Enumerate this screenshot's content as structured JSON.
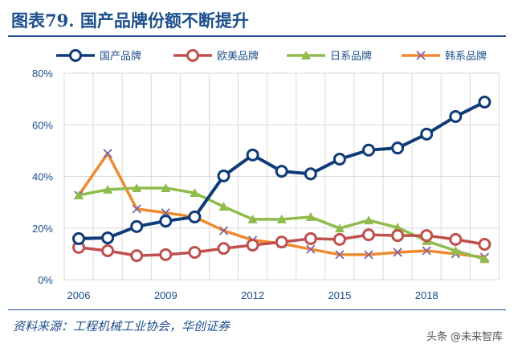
{
  "title": "图表79.  国产品牌份额不断提升",
  "source": "资料来源：工程机械工业协会，华创证券",
  "watermark": "头条 @未来智库",
  "chart_data": {
    "type": "line",
    "x": [
      2006,
      2007,
      2008,
      2009,
      2010,
      2011,
      2012,
      2013,
      2014,
      2015,
      2016,
      2017,
      2018,
      2019,
      2020
    ],
    "x_tick_labels": [
      "2006",
      "2009",
      "2012",
      "2015",
      "2018"
    ],
    "x_ticks": [
      2006,
      2009,
      2012,
      2015,
      2018
    ],
    "y_tick_labels": [
      "0%",
      "20%",
      "40%",
      "60%",
      "80%"
    ],
    "ylim": [
      0,
      80
    ],
    "grid": true,
    "legend": "top",
    "series": [
      {
        "name": "国产品牌",
        "color": "#0f3b78",
        "marker": "circle",
        "values": [
          15.9,
          16.2,
          20.6,
          22.7,
          24.3,
          40.2,
          48.3,
          42,
          41,
          46.7,
          50.2,
          51,
          56.4,
          63.2,
          68.8
        ]
      },
      {
        "name": "欧美品牌",
        "color": "#c0504d",
        "marker": "circle",
        "values": [
          12.5,
          11.2,
          9.3,
          9.7,
          10.6,
          12.1,
          13.4,
          14.6,
          15.9,
          15.6,
          17.4,
          17.1,
          17.1,
          15.6,
          13.7
        ]
      },
      {
        "name": "日系品牌",
        "color": "#8fbc4a",
        "marker": "triangle",
        "values": [
          32.7,
          34.9,
          35.5,
          35.5,
          33.6,
          28.3,
          23.4,
          23.4,
          24.3,
          19.9,
          23,
          20.2,
          15,
          11.2,
          8
        ]
      },
      {
        "name": "韩系品牌",
        "color": "#f08a30",
        "marker": "x",
        "values": [
          32.7,
          48.9,
          27.4,
          25.9,
          24.3,
          19,
          15.3,
          14,
          11.8,
          9.7,
          9.7,
          10.6,
          11.2,
          10,
          8.7
        ]
      }
    ]
  }
}
